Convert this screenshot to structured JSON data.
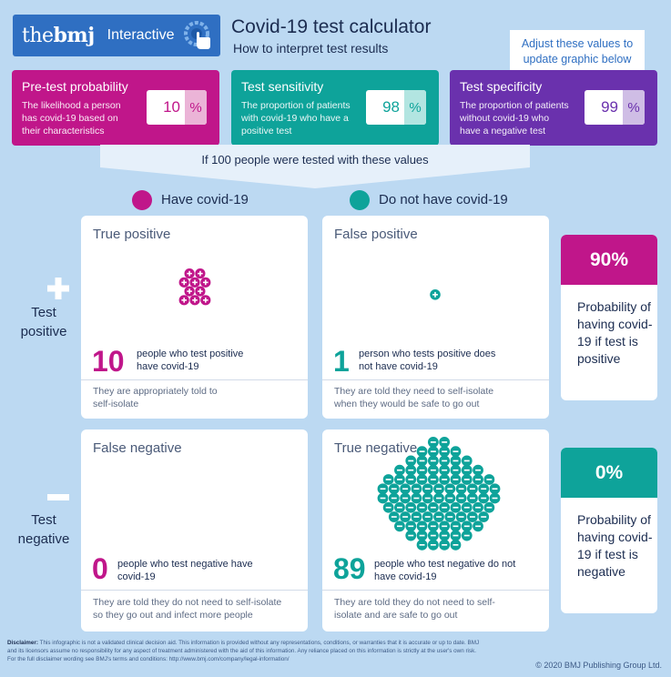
{
  "header": {
    "brand_prefix": "the",
    "brand_bold": "bmj",
    "interactive_label": "Interactive",
    "title": "Covid-19 test calculator",
    "subtitle": "How to interpret test results",
    "tooltip": "Adjust these values to update graphic below"
  },
  "inputs": [
    {
      "heading": "Pre-test probability",
      "description": "The likelihood a person has covid-19 based on their characteristics",
      "value": "10",
      "unit": "%",
      "color": "#c0168a",
      "accent": "#ebb4d7"
    },
    {
      "heading": "Test sensitivity",
      "description": "The proportion of patients with covid-19 who have a positive test",
      "value": "98",
      "unit": "%",
      "color": "#0ea39a",
      "accent": "#b2e5e1"
    },
    {
      "heading": "Test specificity",
      "description": "The proportion of patients without covid-19 who have a negative test",
      "value": "99",
      "unit": "%",
      "color": "#6a31ad",
      "accent": "#cfbde5"
    }
  ],
  "funnel_text": "If 100 people were tested with these values",
  "legend": {
    "have": "Have covid-19",
    "not_have": "Do not have covid-19",
    "have_color": "#c0168a",
    "not_have_color": "#0ea39a"
  },
  "rows": {
    "positive_label": "Test\npositive",
    "negative_label": "Test\nnegative"
  },
  "grid": {
    "true_positive": {
      "title": "True positive",
      "count": "10",
      "caption": "people who test positive have covid-19",
      "footer": "They are appropriately told to self-isolate"
    },
    "false_positive": {
      "title": "False positive",
      "count": "1",
      "caption": "person who tests positive does not have covid-19",
      "footer": "They are told they need to self-isolate when they would be safe to go out"
    },
    "false_negative": {
      "title": "False negative",
      "count": "0",
      "caption": "people who test negative have covid-19",
      "footer": "They are told they do not need to self-isolate so they go out and infect more people"
    },
    "true_negative": {
      "title": "True negative",
      "count": "89",
      "caption": "people who test negative do not have covid-19",
      "footer": "They are told they do not need to self-isolate and are safe to go out"
    }
  },
  "probabilities": {
    "positive": {
      "value": "90%",
      "text": "Probability of having covid-19 if test is positive",
      "color": "#c0168a"
    },
    "negative": {
      "value": "0%",
      "text": "Probability of having covid-19 if test is negative",
      "color": "#0ea39a"
    }
  },
  "disclaimer": {
    "label": "Disclaimer:",
    "text": "This infographic is not a validated clinical decision aid. This information is provided without any representations, conditions, or warranties that it is accurate or up to date. BMJ and its licensors assume no responsibility for any aspect of treatment administered with the aid of this information. Any reliance placed on this information is strictly at the user's own risk. For the full disclaimer wording see BMJ's terms and conditions: http://www.bmj.com/company/legal-information/"
  },
  "copyright": "© 2020 BMJ Publishing Group Ltd."
}
